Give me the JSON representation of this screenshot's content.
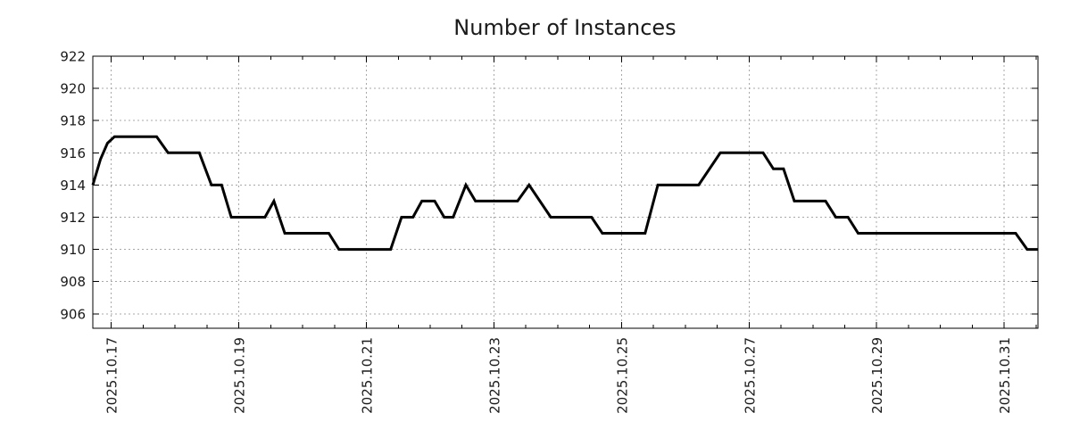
{
  "chart_data": {
    "type": "line",
    "title": "Number of Instances",
    "x_axis": {
      "kind": "time",
      "t_unit": "days since 2025.10.17 00:00",
      "min": -0.29,
      "max": 14.53,
      "major_ticks": [
        {
          "value": 0,
          "label": "2025.10.17"
        },
        {
          "value": 2,
          "label": "2025.10.19"
        },
        {
          "value": 4,
          "label": "2025.10.21"
        },
        {
          "value": 6,
          "label": "2025.10.23"
        },
        {
          "value": 8,
          "label": "2025.10.25"
        },
        {
          "value": 10,
          "label": "2025.10.27"
        },
        {
          "value": 12,
          "label": "2025.10.29"
        },
        {
          "value": 14,
          "label": "2025.10.31"
        }
      ],
      "minor_tick_step": 0.5,
      "major_tick_step": 2
    },
    "y_axis": {
      "min": 905.1,
      "max": 922,
      "ticks": [
        906,
        908,
        910,
        912,
        914,
        916,
        918,
        920,
        922
      ]
    },
    "grid": {
      "show": true,
      "style": "dotted",
      "color": "#a8a8a8"
    },
    "legend": {
      "show": false
    },
    "series": [
      {
        "name": "Number of Instances",
        "color": "#000000",
        "line_width": 3,
        "points": [
          [
            -0.29,
            914
          ],
          [
            -0.17,
            915.6
          ],
          [
            -0.06,
            916.6
          ],
          [
            0.05,
            917
          ],
          [
            0.71,
            917
          ],
          [
            0.89,
            916
          ],
          [
            1.38,
            916
          ],
          [
            1.57,
            914
          ],
          [
            1.73,
            914
          ],
          [
            1.88,
            912
          ],
          [
            2.41,
            912
          ],
          [
            2.55,
            913
          ],
          [
            2.72,
            911
          ],
          [
            3.41,
            911
          ],
          [
            3.57,
            910
          ],
          [
            4.38,
            910
          ],
          [
            4.55,
            912
          ],
          [
            4.73,
            912
          ],
          [
            4.87,
            913
          ],
          [
            5.07,
            913
          ],
          [
            5.22,
            912
          ],
          [
            5.36,
            912
          ],
          [
            5.56,
            914
          ],
          [
            5.71,
            913
          ],
          [
            6.37,
            913
          ],
          [
            6.55,
            914
          ],
          [
            6.89,
            912
          ],
          [
            7.53,
            912
          ],
          [
            7.7,
            911
          ],
          [
            8.37,
            911
          ],
          [
            8.57,
            914
          ],
          [
            9.21,
            914
          ],
          [
            9.55,
            916
          ],
          [
            10.22,
            916
          ],
          [
            10.38,
            915
          ],
          [
            10.54,
            915
          ],
          [
            10.71,
            913
          ],
          [
            11.2,
            913
          ],
          [
            11.36,
            912
          ],
          [
            11.55,
            912
          ],
          [
            11.71,
            911
          ],
          [
            14.18,
            911
          ],
          [
            14.36,
            910
          ],
          [
            14.53,
            910
          ]
        ]
      }
    ]
  },
  "colors": {
    "background": "#ffffff",
    "axis": "#000000",
    "text": "#1a1a1a"
  }
}
